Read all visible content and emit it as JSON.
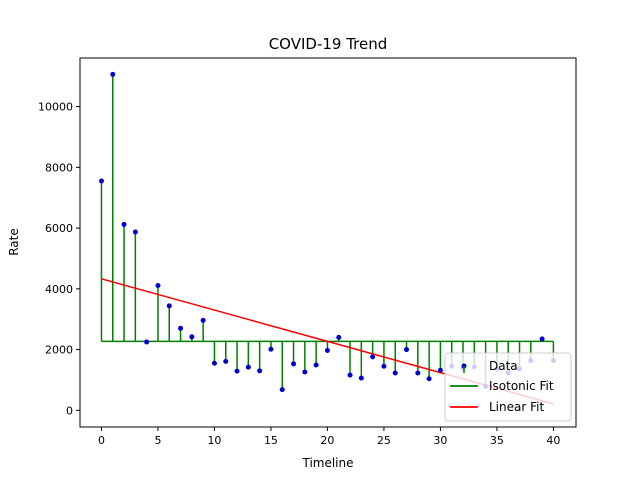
{
  "chart_data": {
    "type": "line",
    "title": "COVID-19 Trend",
    "xlabel": "Timeline",
    "ylabel": "Rate",
    "xlim": [
      -1.9,
      42.0
    ],
    "ylim": [
      -550,
      11600
    ],
    "xticks": [
      0,
      5,
      10,
      15,
      20,
      25,
      30,
      35,
      40
    ],
    "yticks": [
      0,
      2000,
      4000,
      6000,
      8000,
      10000
    ],
    "grid": false,
    "legend_position": "lower right",
    "isotonic_level": 2270,
    "x": [
      0,
      1,
      2,
      3,
      4,
      5,
      6,
      7,
      8,
      9,
      10,
      11,
      12,
      13,
      14,
      15,
      16,
      17,
      18,
      19,
      20,
      21,
      22,
      23,
      24,
      25,
      26,
      27,
      28,
      29,
      30,
      31,
      32,
      33,
      34,
      35,
      36,
      37,
      38,
      39,
      40
    ],
    "series": [
      {
        "name": "Data",
        "kind": "scatter",
        "color": "#0000cc",
        "values": [
          7550,
          11060,
          6120,
          5870,
          2250,
          4110,
          3440,
          2700,
          2420,
          2960,
          1550,
          1610,
          1290,
          1420,
          1300,
          2010,
          680,
          1530,
          1260,
          1490,
          1970,
          2400,
          1160,
          1060,
          1760,
          1450,
          1230,
          2000,
          1230,
          1040,
          1320,
          1450,
          1390,
          1430,
          790,
          1360,
          1230,
          1370,
          1640,
          2350,
          1640
        ]
      },
      {
        "name": "Isotonic Fit",
        "kind": "step",
        "color": "#008000",
        "values": [
          2270,
          2270,
          2270,
          2270,
          2270,
          2270,
          2270,
          2270,
          2270,
          2270,
          2270,
          2270,
          2270,
          2270,
          2270,
          2270,
          2270,
          2270,
          2270,
          2270,
          2270,
          2270,
          2270,
          2270,
          2270,
          2270,
          2270,
          2270,
          2270,
          2270,
          2270,
          2270,
          2270,
          2270,
          2270,
          2270,
          2270,
          2270,
          2270,
          2270,
          2270
        ]
      },
      {
        "name": "Linear Fit",
        "kind": "line",
        "color": "#ff0000",
        "values": [
          4330,
          4227,
          4124,
          4021,
          3918,
          3815,
          3712,
          3609,
          3506,
          3403,
          3300,
          3197,
          3094,
          2991,
          2888,
          2785,
          2682,
          2579,
          2476,
          2373,
          2270,
          2167,
          2064,
          1961,
          1858,
          1755,
          1652,
          1549,
          1446,
          1343,
          1240,
          1137,
          1034,
          931,
          828,
          725,
          622,
          519,
          416,
          313,
          210
        ]
      }
    ]
  }
}
